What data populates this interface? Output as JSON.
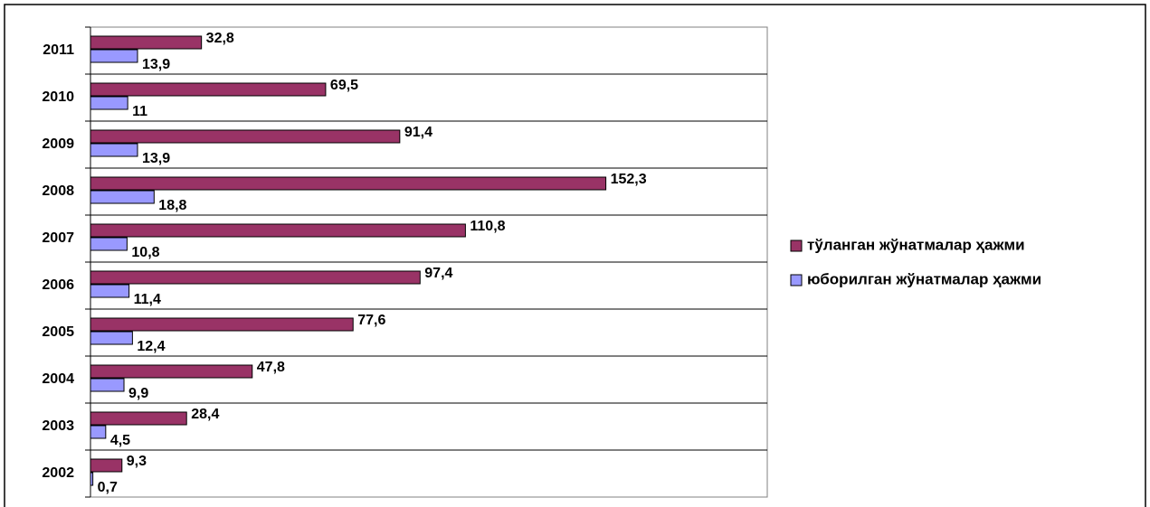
{
  "chart_data": {
    "type": "bar",
    "orientation": "horizontal",
    "legend": "right",
    "categories": [
      "2002",
      "2003",
      "2004",
      "2005",
      "2006",
      "2007",
      "2008",
      "2009",
      "2010",
      "2011"
    ],
    "series": [
      {
        "name": "тўланган жўнатмалар ҳажми",
        "color": "#993366",
        "values": [
          9.3,
          28.4,
          47.8,
          77.6,
          97.4,
          110.8,
          152.3,
          91.4,
          69.5,
          32.8
        ],
        "value_labels": [
          "9,3",
          "28,4",
          "47,8",
          "77,6",
          "97,4",
          "110,8",
          "152,3",
          "91,4",
          "69,5",
          "32,8"
        ]
      },
      {
        "name": "юборилган жўнатмалар ҳажми",
        "color": "#9999ff",
        "values": [
          0.7,
          4.5,
          9.9,
          12.4,
          11.4,
          10.8,
          18.8,
          13.9,
          11,
          13.9
        ],
        "value_labels": [
          "0,7",
          "4,5",
          "9,9",
          "12,4",
          "11,4",
          "10,8",
          "18,8",
          "13,9",
          "11",
          "13,9"
        ]
      }
    ],
    "xlim": [
      0,
      200
    ]
  }
}
